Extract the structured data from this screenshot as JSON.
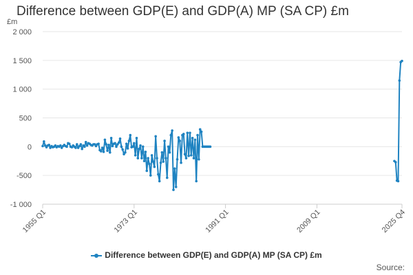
{
  "chart_data": {
    "type": "line",
    "title": "Difference between GDP(E) and GDP(A) MP (SA CP) £m",
    "unit_label": "£m",
    "ylim": [
      -1000,
      2000
    ],
    "yticks": [
      2000,
      1500,
      1000,
      500,
      0,
      -500,
      -1000
    ],
    "ytick_labels": [
      "2 000",
      "1 500",
      "1 000",
      "500",
      "0",
      "-500",
      "-1 000"
    ],
    "x_start": "1955 Q1",
    "x_end": "2025 Q4",
    "xticks": [
      {
        "label": "1955 Q1",
        "index": 0
      },
      {
        "label": "1973 Q1",
        "index": 72
      },
      {
        "label": "1991 Q1",
        "index": 144
      },
      {
        "label": "2009 Q1",
        "index": 216
      },
      {
        "label": "2025 Q4",
        "index": 283
      }
    ],
    "series": [
      {
        "name": "Difference between GDP(E) and GDP(A) MP (SA CP) £m",
        "color": "#1f83c1",
        "segments": [
          {
            "start_index": 0,
            "values": [
              10,
              90,
              20,
              -10,
              20,
              30,
              -20,
              10,
              -10,
              0,
              20,
              -10,
              10,
              0,
              20,
              -20,
              10,
              30,
              10,
              0,
              60,
              50,
              0,
              -10,
              20,
              0,
              -20,
              40,
              -20,
              10,
              40,
              -40,
              20,
              0,
              80,
              20,
              60,
              50,
              30,
              20,
              40,
              40,
              10,
              40,
              50,
              -60,
              -80,
              -20,
              -90,
              120,
              40,
              -70,
              30,
              -100,
              150,
              10,
              50,
              60,
              0,
              40,
              70,
              140,
              0,
              -50,
              -130,
              -100,
              50,
              -30,
              100,
              200,
              -10,
              0,
              60,
              -150,
              150,
              -200,
              -40,
              20,
              -200,
              0,
              -250,
              -90,
              -420,
              -200,
              -300,
              -500,
              -150,
              -260,
              -350,
              180,
              -200,
              -480,
              -600,
              -280,
              -100,
              -260,
              100,
              -200,
              -540,
              0,
              -100,
              200,
              280,
              -750,
              -380,
              -700,
              -220,
              160,
              100,
              -280,
              200,
              220,
              -130,
              -200,
              240,
              -160,
              240,
              -150,
              150,
              -200,
              120,
              -600,
              200,
              -220,
              300,
              260,
              0,
              0,
              0,
              0,
              0,
              0,
              0
            ]
          },
          {
            "start_index": 277,
            "values": [
              -250,
              -270,
              -590,
              -600,
              1150,
              1470,
              1490
            ]
          }
        ]
      }
    ],
    "legend_position": "bottom",
    "source_label": "Source:"
  }
}
